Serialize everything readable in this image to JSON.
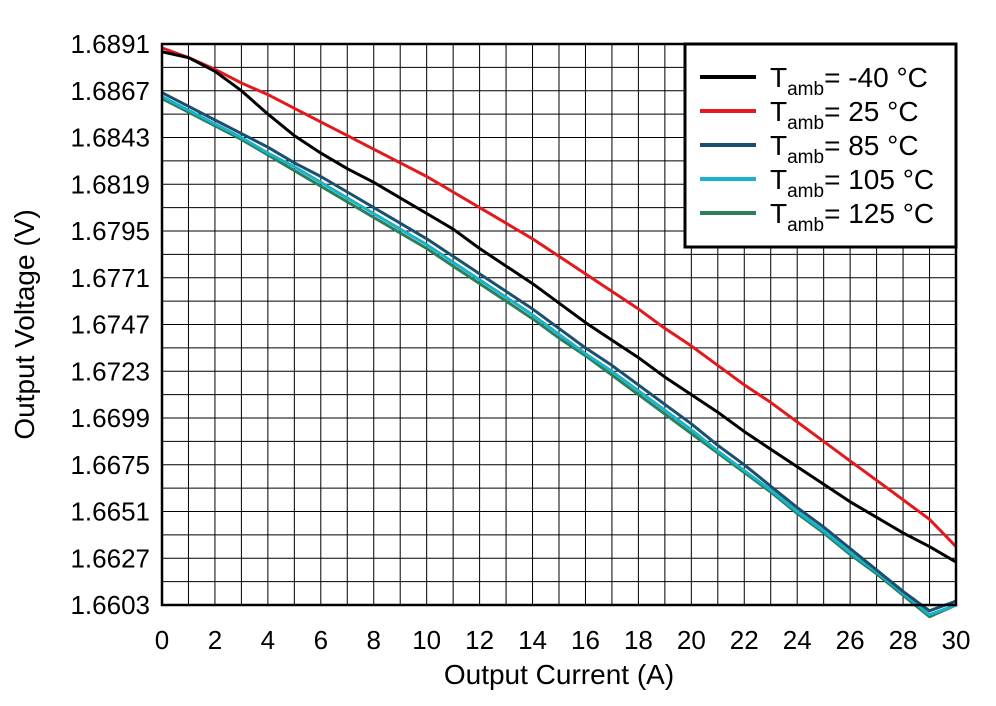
{
  "chart_data": {
    "type": "line",
    "title": "",
    "xlabel": "Output Current (A)",
    "ylabel": "Output Voltage (V)",
    "xlim": [
      0,
      30
    ],
    "ylim": [
      1.6603,
      1.6891
    ],
    "xticks": [
      0,
      2,
      4,
      6,
      8,
      10,
      12,
      14,
      16,
      18,
      20,
      22,
      24,
      26,
      28,
      30
    ],
    "yticks": [
      1.6603,
      1.6627,
      1.6651,
      1.6675,
      1.6699,
      1.6723,
      1.6747,
      1.6771,
      1.6795,
      1.6819,
      1.6843,
      1.6867,
      1.6891
    ],
    "x_minor_step": 1,
    "y_minor_step": 0.0012,
    "grid": true,
    "legend_position": "top-right",
    "series": [
      {
        "name": "Tamb= -40 °C",
        "legend_main": "T",
        "legend_sub": "amb",
        "legend_rest": "= -40 °C",
        "color": "#000000",
        "x": [
          0,
          1,
          2,
          3,
          4,
          5,
          6,
          7,
          8,
          9,
          10,
          11,
          12,
          13,
          14,
          15,
          16,
          17,
          18,
          19,
          20,
          21,
          22,
          23,
          24,
          25,
          26,
          27,
          28,
          29,
          30
        ],
        "y": [
          1.6887,
          1.6884,
          1.6877,
          1.6867,
          1.6855,
          1.6844,
          1.6835,
          1.6827,
          1.682,
          1.6812,
          1.6804,
          1.6796,
          1.6786,
          1.6777,
          1.6768,
          1.6758,
          1.6748,
          1.6739,
          1.673,
          1.672,
          1.6711,
          1.6702,
          1.6692,
          1.6683,
          1.6674,
          1.6665,
          1.6656,
          1.6648,
          1.664,
          1.6633,
          1.6625
        ]
      },
      {
        "name": "Tamb= 25 °C",
        "legend_main": "T",
        "legend_sub": "amb",
        "legend_rest": "= 25 °C",
        "color": "#e3191e",
        "x": [
          0,
          1,
          2,
          3,
          4,
          5,
          6,
          7,
          8,
          9,
          10,
          11,
          12,
          13,
          14,
          15,
          16,
          17,
          18,
          19,
          20,
          21,
          22,
          23,
          24,
          25,
          26,
          27,
          28,
          29,
          30
        ],
        "y": [
          1.6889,
          1.6884,
          1.6878,
          1.6871,
          1.6865,
          1.6858,
          1.6851,
          1.6844,
          1.6837,
          1.683,
          1.6823,
          1.6815,
          1.6807,
          1.6799,
          1.6791,
          1.6782,
          1.6773,
          1.6764,
          1.6755,
          1.6745,
          1.6736,
          1.6726,
          1.6716,
          1.6707,
          1.6697,
          1.6687,
          1.6677,
          1.6667,
          1.6657,
          1.6647,
          1.6633
        ]
      },
      {
        "name": "Tamb= 85 °C",
        "legend_main": "T",
        "legend_sub": "amb",
        "legend_rest": "= 85 °C",
        "color": "#1c4f6e",
        "x": [
          0,
          1,
          2,
          3,
          4,
          5,
          6,
          7,
          8,
          9,
          10,
          11,
          12,
          13,
          14,
          15,
          16,
          17,
          18,
          19,
          20,
          21,
          22,
          23,
          24,
          25,
          26,
          27,
          28,
          29,
          30
        ],
        "y": [
          1.6866,
          1.6859,
          1.6852,
          1.6845,
          1.6838,
          1.683,
          1.6823,
          1.6815,
          1.6807,
          1.6799,
          1.6791,
          1.6782,
          1.6773,
          1.6764,
          1.6755,
          1.6745,
          1.6735,
          1.6726,
          1.6716,
          1.6706,
          1.6696,
          1.6685,
          1.6675,
          1.6664,
          1.6653,
          1.6643,
          1.6632,
          1.6621,
          1.661,
          1.66,
          1.6605
        ]
      },
      {
        "name": "Tamb= 105 °C",
        "legend_main": "T",
        "legend_sub": "amb",
        "legend_rest": "= 105 °C",
        "color": "#17b3c9",
        "x": [
          0,
          1,
          2,
          3,
          4,
          5,
          6,
          7,
          8,
          9,
          10,
          11,
          12,
          13,
          14,
          15,
          16,
          17,
          18,
          19,
          20,
          21,
          22,
          23,
          24,
          25,
          26,
          27,
          28,
          29,
          30
        ],
        "y": [
          1.6864,
          1.6857,
          1.685,
          1.6843,
          1.6835,
          1.6828,
          1.682,
          1.6812,
          1.6804,
          1.6796,
          1.6788,
          1.6779,
          1.677,
          1.6761,
          1.6752,
          1.6742,
          1.6732,
          1.6723,
          1.6713,
          1.6703,
          1.6693,
          1.6682,
          1.6672,
          1.6662,
          1.6651,
          1.6641,
          1.663,
          1.662,
          1.6609,
          1.6598,
          1.6603
        ]
      },
      {
        "name": "Tamb= 125 °C",
        "legend_main": "T",
        "legend_sub": "amb",
        "legend_rest": "= 125 °C",
        "color": "#2e7d5b",
        "x": [
          0,
          1,
          2,
          3,
          4,
          5,
          6,
          7,
          8,
          9,
          10,
          11,
          12,
          13,
          14,
          15,
          16,
          17,
          18,
          19,
          20,
          21,
          22,
          23,
          24,
          25,
          26,
          27,
          28,
          29,
          30
        ],
        "y": [
          1.6863,
          1.6856,
          1.6849,
          1.6842,
          1.6834,
          1.6826,
          1.6818,
          1.681,
          1.6802,
          1.6794,
          1.6786,
          1.6777,
          1.6768,
          1.6759,
          1.675,
          1.674,
          1.6731,
          1.6721,
          1.6711,
          1.6701,
          1.6691,
          1.6681,
          1.6671,
          1.6661,
          1.665,
          1.664,
          1.6629,
          1.6619,
          1.6608,
          1.6597,
          1.6603
        ]
      }
    ]
  }
}
